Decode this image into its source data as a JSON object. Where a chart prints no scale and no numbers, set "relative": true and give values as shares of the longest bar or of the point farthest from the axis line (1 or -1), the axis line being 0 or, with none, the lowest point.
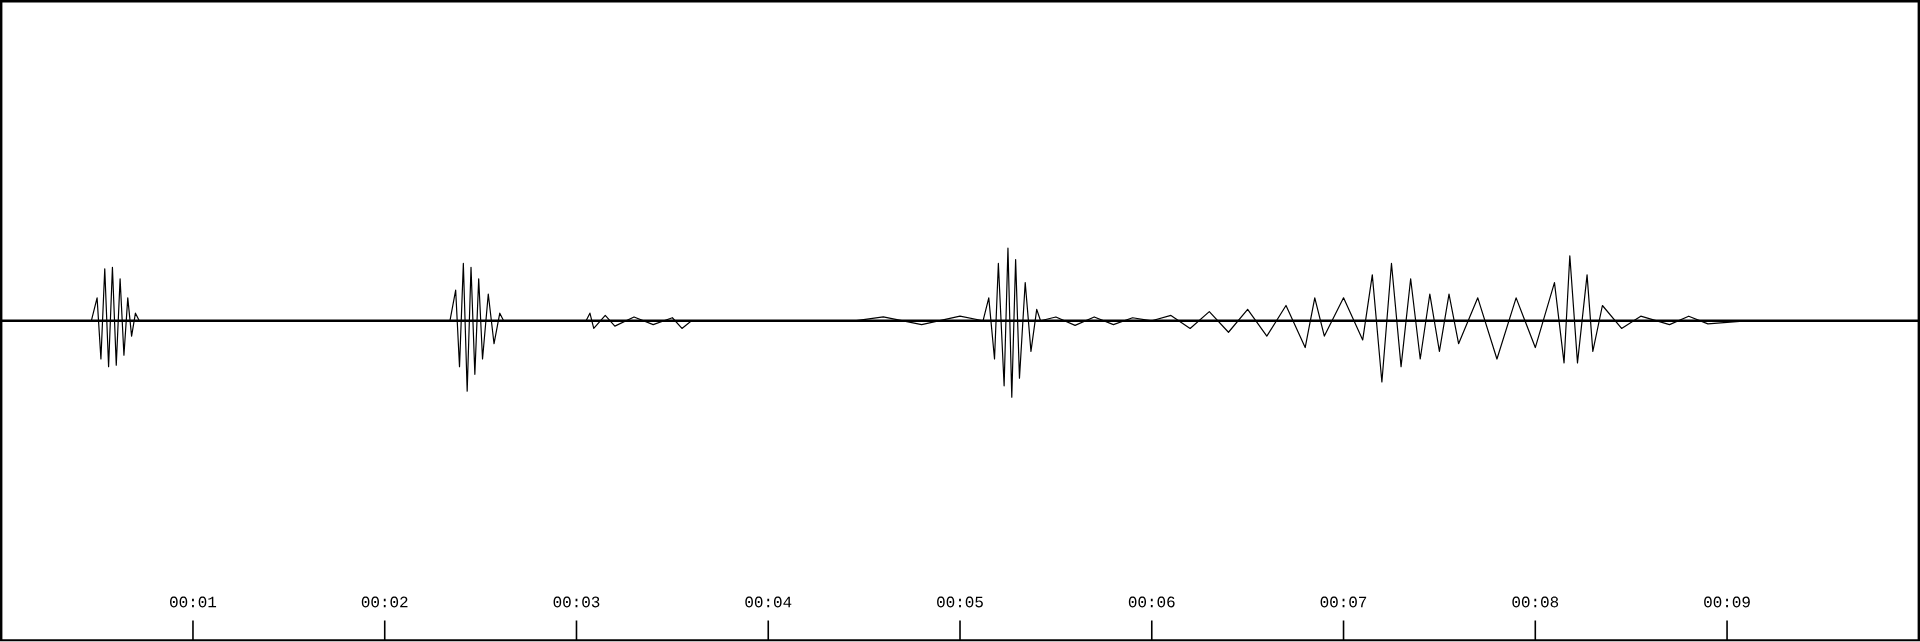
{
  "chart_data": {
    "type": "line",
    "relative": true,
    "color": "#000000",
    "xlim": [
      0,
      10
    ],
    "xticks": [
      {
        "value": 1,
        "label": "00:01"
      },
      {
        "value": 2,
        "label": "00:02"
      },
      {
        "value": 3,
        "label": "00:03"
      },
      {
        "value": 4,
        "label": "00:04"
      },
      {
        "value": 5,
        "label": "00:05"
      },
      {
        "value": 6,
        "label": "00:06"
      },
      {
        "value": 7,
        "label": "00:07"
      },
      {
        "value": 8,
        "label": "00:08"
      },
      {
        "value": 9,
        "label": "00:09"
      }
    ],
    "x": [
      0,
      0.47,
      0.5,
      0.52,
      0.54,
      0.56,
      0.58,
      0.6,
      0.62,
      0.64,
      0.66,
      0.68,
      0.7,
      0.72,
      2.34,
      2.37,
      2.39,
      2.41,
      2.43,
      2.45,
      2.47,
      2.49,
      2.51,
      2.54,
      2.57,
      2.6,
      2.62,
      3.05,
      3.07,
      3.09,
      3.15,
      3.2,
      3.3,
      3.4,
      3.5,
      3.55,
      3.6,
      4.45,
      4.6,
      4.8,
      5.0,
      5.12,
      5.15,
      5.18,
      5.2,
      5.23,
      5.25,
      5.27,
      5.29,
      5.31,
      5.34,
      5.37,
      5.4,
      5.42,
      5.5,
      5.6,
      5.7,
      5.8,
      5.9,
      6.0,
      6.1,
      6.2,
      6.3,
      6.4,
      6.5,
      6.6,
      6.7,
      6.8,
      6.85,
      6.9,
      7.0,
      7.1,
      7.15,
      7.2,
      7.25,
      7.3,
      7.35,
      7.4,
      7.45,
      7.5,
      7.55,
      7.6,
      7.7,
      7.8,
      7.9,
      8.0,
      8.1,
      8.15,
      8.18,
      8.22,
      8.27,
      8.3,
      8.35,
      8.45,
      8.55,
      8.7,
      8.8,
      8.9,
      9.1,
      10
    ],
    "values": [
      0,
      0,
      0.3,
      -0.5,
      0.68,
      -0.6,
      0.7,
      -0.58,
      0.55,
      -0.45,
      0.3,
      -0.2,
      0.1,
      0,
      0,
      0.4,
      -0.6,
      0.75,
      -0.92,
      0.7,
      -0.7,
      0.55,
      -0.5,
      0.35,
      -0.3,
      0.1,
      0,
      0,
      0.1,
      -0.1,
      0.07,
      -0.07,
      0.05,
      -0.05,
      0.04,
      -0.1,
      0,
      0,
      0.05,
      -0.05,
      0.06,
      0,
      0.3,
      -0.5,
      0.75,
      -0.85,
      0.95,
      -1,
      0.8,
      -0.75,
      0.5,
      -0.4,
      0.15,
      0,
      0.05,
      -0.06,
      0.05,
      -0.05,
      0.04,
      0,
      0.07,
      -0.1,
      0.12,
      -0.15,
      0.15,
      -0.2,
      0.2,
      -0.35,
      0.3,
      -0.2,
      0.3,
      -0.25,
      0.6,
      -0.8,
      0.75,
      -0.6,
      0.55,
      -0.5,
      0.35,
      -0.4,
      0.35,
      -0.3,
      0.3,
      -0.5,
      0.3,
      -0.35,
      0.5,
      -0.55,
      0.85,
      -0.55,
      0.6,
      -0.4,
      0.2,
      -0.1,
      0.06,
      -0.05,
      0.06,
      -0.04,
      0,
      0
    ]
  }
}
